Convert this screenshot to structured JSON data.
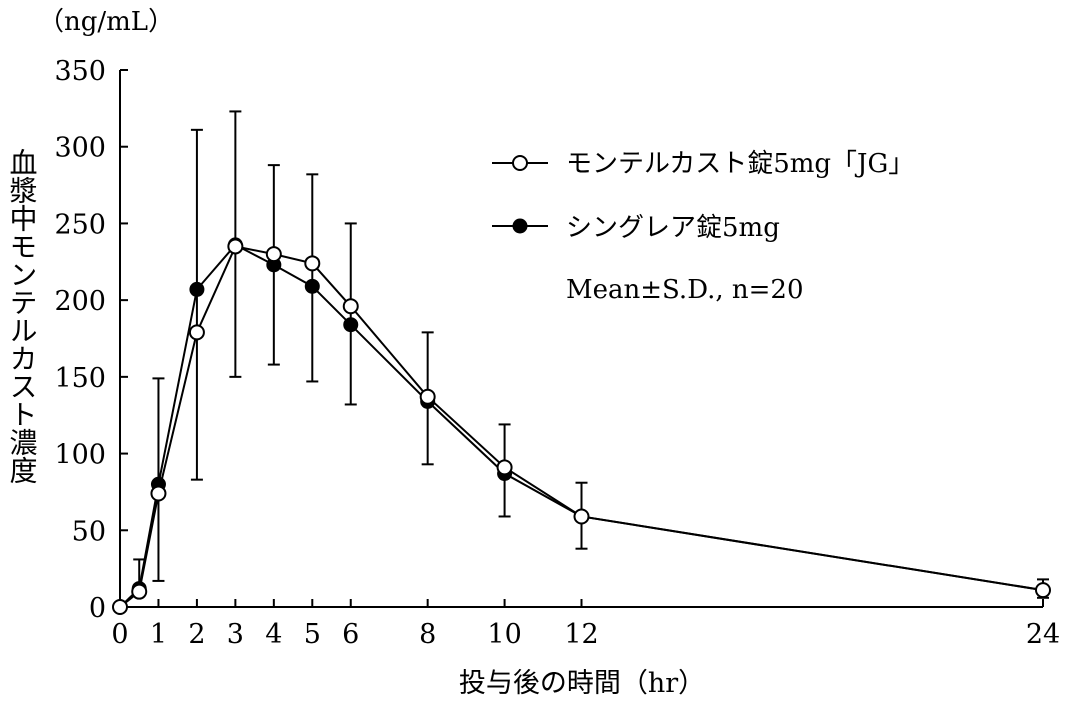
{
  "chart_data": {
    "type": "line",
    "unit_label": "（ng/mL）",
    "ylabel": "血漿中モンテルカスト濃度",
    "xlabel": "投与後の時間（hr）",
    "ylim": [
      0,
      350
    ],
    "yticks": [
      0,
      50,
      100,
      150,
      200,
      250,
      300,
      350
    ],
    "xlim": [
      0,
      24
    ],
    "xticks": [
      0,
      1,
      2,
      3,
      4,
      5,
      6,
      8,
      10,
      12,
      24
    ],
    "x": [
      0,
      0.5,
      1,
      2,
      3,
      4,
      5,
      6,
      8,
      10,
      12,
      24
    ],
    "series": [
      {
        "name": "モンテルカスト錠5mg「JG」",
        "marker": "open-circle",
        "values": [
          0,
          10,
          74,
          179,
          235,
          230,
          224,
          196,
          137,
          91,
          59,
          11
        ]
      },
      {
        "name": "シングレア錠5mg",
        "marker": "filled-circle",
        "values": [
          0,
          12,
          80,
          207,
          236,
          223,
          209,
          184,
          134,
          87,
          59,
          11
        ]
      }
    ],
    "error_bars": [
      {
        "x": 0.5,
        "low": 12,
        "high": 31
      },
      {
        "x": 1,
        "low": 17,
        "high": 149
      },
      {
        "x": 2,
        "low": 83,
        "high": 311
      },
      {
        "x": 3,
        "low": 150,
        "high": 323
      },
      {
        "x": 4,
        "low": 158,
        "high": 288
      },
      {
        "x": 5,
        "low": 147,
        "high": 282
      },
      {
        "x": 6,
        "low": 132,
        "high": 250
      },
      {
        "x": 8,
        "low": 93,
        "high": 179
      },
      {
        "x": 10,
        "low": 59,
        "high": 119
      },
      {
        "x": 12,
        "low": 38,
        "high": 81
      },
      {
        "x": 24,
        "low": 6,
        "high": 18
      }
    ],
    "annotation": "Mean±S.D., n=20",
    "legend_position": "top-right"
  }
}
